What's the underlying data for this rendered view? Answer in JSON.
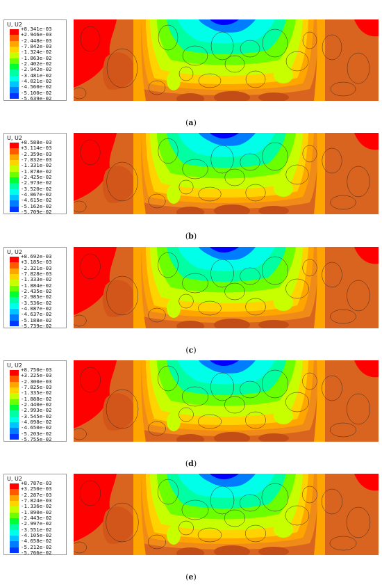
{
  "colors": [
    "#ff0000",
    "#ff5a00",
    "#ffa500",
    "#ffd300",
    "#c8ff00",
    "#6cff00",
    "#00ff33",
    "#00ffa2",
    "#00ffe9",
    "#00c4ff",
    "#007dff",
    "#0036ff",
    "#0000ff"
  ],
  "panels": [
    {
      "title": "U, U2",
      "labels": [
        "+8.341e-03",
        "+2.946e-03",
        "-2.448e-03",
        "-7.842e-03",
        "-1.324e-02",
        "-1.863e-02",
        "-2.402e-02",
        "-2.942e-02",
        "-3.481e-02",
        "-4.021e-02",
        "-4.560e-02",
        "-5.100e-02",
        "-5.639e-02"
      ],
      "caption": "a"
    },
    {
      "title": "U, U2",
      "labels": [
        "+8.588e-03",
        "+3.114e-03",
        "-2.359e-03",
        "-7.832e-03",
        "-1.331e-02",
        "-1.878e-02",
        "-2.425e-02",
        "-2.973e-02",
        "-3.520e-02",
        "-4.067e-02",
        "-4.615e-02",
        "-5.162e-02",
        "-5.709e-02"
      ],
      "caption": "b"
    },
    {
      "title": "U, U2",
      "labels": [
        "+8.692e-03",
        "+3.185e-03",
        "-2.321e-03",
        "-7.828e-03",
        "-1.333e-02",
        "-1.884e-02",
        "-2.435e-02",
        "-2.985e-02",
        "-3.536e-02",
        "-4.087e-02",
        "-4.637e-02",
        "-5.188e-02",
        "-5.739e-02"
      ],
      "caption": "c"
    },
    {
      "title": "U, U2",
      "labels": [
        "+8.750e-03",
        "+3.225e-03",
        "-2.300e-03",
        "-7.825e-03",
        "-1.335e-02",
        "-1.888e-02",
        "-2.440e-02",
        "-2.993e-02",
        "-3.545e-02",
        "-4.098e-02",
        "-4.650e-02",
        "-5.203e-02",
        "-5.755e-02"
      ],
      "caption": "d"
    },
    {
      "title": "U, U2",
      "labels": [
        "+8.787e-03",
        "+3.250e-03",
        "-2.287e-03",
        "-7.824e-03",
        "-1.336e-02",
        "-1.890e-02",
        "-2.443e-02",
        "-2.997e-02",
        "-3.551e-02",
        "-4.105e-02",
        "-4.658e-02",
        "-5.212e-02",
        "-5.766e-02"
      ],
      "caption": "e"
    }
  ]
}
